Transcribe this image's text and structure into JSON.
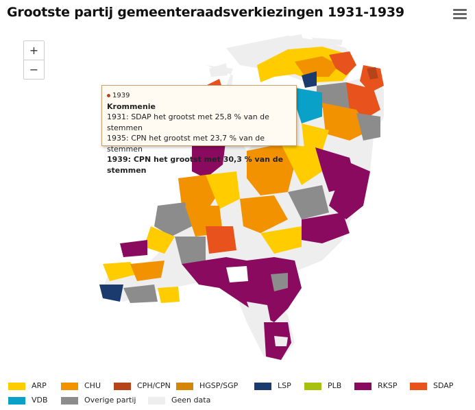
{
  "title": "Grootste partij gemeenteraadsverkiezingen 1931-1939",
  "menu_icon": "hamburger-menu-icon",
  "zoom": {
    "in_label": "+",
    "out_label": "−"
  },
  "tooltip": {
    "year_label": "1939",
    "municipality": "Krommenie",
    "line1": "1931: SDAP het grootst met 25,8 % van de stemmen",
    "line2": "1935: CPN het grootst met 23,7 % van de stemmen",
    "line3": "1939: CPN het grootst met 30,3 % van de stemmen",
    "dot_color": "#b5441a"
  },
  "legend": [
    {
      "label": "ARP",
      "color": "#ffcc00"
    },
    {
      "label": "CHU",
      "color": "#f39200"
    },
    {
      "label": "CPH/CPN",
      "color": "#b5441a"
    },
    {
      "label": "HGSP/SGP",
      "color": "#d4860b"
    },
    {
      "label": "LSP",
      "color": "#1b3b6f"
    },
    {
      "label": "PLB",
      "color": "#a8c10f"
    },
    {
      "label": "RKSP",
      "color": "#8a0a5f"
    },
    {
      "label": "SDAP",
      "color": "#e8531d"
    },
    {
      "label": "VDB",
      "color": "#0aa1c9"
    },
    {
      "label": "Overige partij",
      "color": "#8c8c8c"
    },
    {
      "label": "Geen data",
      "color": "#eeeeee"
    }
  ]
}
